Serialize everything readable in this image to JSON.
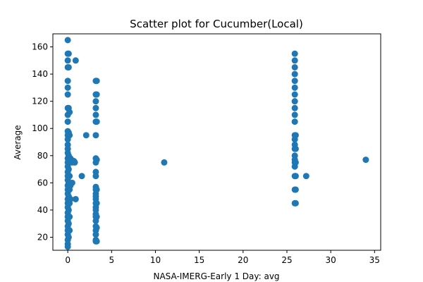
{
  "chart_data": {
    "type": "scatter",
    "title": "Scatter plot for Cucumber(Local)",
    "xlabel": "NASA-IMERG-Early 1 Day: avg",
    "ylabel": "Average",
    "xlim": [
      -1.7,
      35.7
    ],
    "ylim": [
      10.4,
      169.6
    ],
    "xticks": [
      0,
      5,
      10,
      15,
      20,
      25,
      30,
      35
    ],
    "yticks": [
      20,
      40,
      60,
      80,
      100,
      120,
      140,
      160
    ],
    "grid": false,
    "point_color": "#1f77b4",
    "points": [
      [
        0,
        165
      ],
      [
        0,
        155
      ],
      [
        0,
        150
      ],
      [
        0,
        145
      ],
      [
        0,
        135
      ],
      [
        0,
        130
      ],
      [
        0,
        125
      ],
      [
        0,
        115
      ],
      [
        0,
        110
      ],
      [
        0,
        105
      ],
      [
        0,
        98
      ],
      [
        0,
        95
      ],
      [
        0,
        92
      ],
      [
        0,
        88
      ],
      [
        0,
        85
      ],
      [
        0,
        82
      ],
      [
        0,
        78
      ],
      [
        0,
        75
      ],
      [
        0,
        72
      ],
      [
        0,
        68
      ],
      [
        0,
        65
      ],
      [
        0,
        62
      ],
      [
        0,
        58
      ],
      [
        0,
        55
      ],
      [
        0,
        52
      ],
      [
        0,
        48
      ],
      [
        0,
        45
      ],
      [
        0,
        42
      ],
      [
        0,
        38
      ],
      [
        0,
        35
      ],
      [
        0,
        32
      ],
      [
        0,
        28
      ],
      [
        0,
        25
      ],
      [
        0,
        22
      ],
      [
        0,
        18
      ],
      [
        0,
        15
      ],
      [
        0,
        13
      ],
      [
        0.1,
        155
      ],
      [
        0.1,
        145
      ],
      [
        0.1,
        115
      ],
      [
        0.1,
        97
      ],
      [
        0.1,
        80
      ],
      [
        0.1,
        70
      ],
      [
        0.1,
        60
      ],
      [
        0.1,
        50
      ],
      [
        0.1,
        40
      ],
      [
        0.1,
        30
      ],
      [
        0.1,
        20
      ],
      [
        0.2,
        112
      ],
      [
        0.2,
        95
      ],
      [
        0.2,
        78
      ],
      [
        0.2,
        65
      ],
      [
        0.2,
        55
      ],
      [
        0.2,
        45
      ],
      [
        0.2,
        35
      ],
      [
        0.2,
        25
      ],
      [
        0.3,
        78
      ],
      [
        0.3,
        58
      ],
      [
        0.3,
        48
      ],
      [
        0.4,
        77
      ],
      [
        0.5,
        60
      ],
      [
        0.5,
        75
      ],
      [
        0.7,
        76
      ],
      [
        0.8,
        75
      ],
      [
        0.9,
        48
      ],
      [
        0.9,
        150
      ],
      [
        1.6,
        65
      ],
      [
        2.1,
        95
      ],
      [
        3.2,
        135
      ],
      [
        3.2,
        125
      ],
      [
        3.2,
        120
      ],
      [
        3.2,
        115
      ],
      [
        3.2,
        110
      ],
      [
        3.2,
        105
      ],
      [
        3.2,
        95
      ],
      [
        3.2,
        78
      ],
      [
        3.2,
        75
      ],
      [
        3.2,
        68
      ],
      [
        3.2,
        65
      ],
      [
        3.2,
        57
      ],
      [
        3.2,
        55
      ],
      [
        3.2,
        52
      ],
      [
        3.2,
        50
      ],
      [
        3.2,
        48
      ],
      [
        3.2,
        45
      ],
      [
        3.2,
        42
      ],
      [
        3.2,
        40
      ],
      [
        3.2,
        37
      ],
      [
        3.2,
        35
      ],
      [
        3.2,
        32
      ],
      [
        3.2,
        28
      ],
      [
        3.2,
        25
      ],
      [
        3.2,
        22
      ],
      [
        3.2,
        18
      ],
      [
        3.2,
        17
      ],
      [
        3.3,
        135
      ],
      [
        3.3,
        125
      ],
      [
        3.3,
        105
      ],
      [
        3.3,
        77
      ],
      [
        3.3,
        55
      ],
      [
        3.3,
        45
      ],
      [
        3.3,
        35
      ],
      [
        3.3,
        27
      ],
      [
        3.3,
        17
      ],
      [
        11,
        75
      ],
      [
        25.9,
        155
      ],
      [
        25.9,
        150
      ],
      [
        25.9,
        145
      ],
      [
        25.9,
        140
      ],
      [
        25.9,
        135
      ],
      [
        25.9,
        130
      ],
      [
        25.9,
        125
      ],
      [
        25.9,
        120
      ],
      [
        25.9,
        115
      ],
      [
        25.9,
        110
      ],
      [
        25.9,
        105
      ],
      [
        25.9,
        95
      ],
      [
        25.9,
        92
      ],
      [
        25.9,
        88
      ],
      [
        25.9,
        85
      ],
      [
        25.9,
        80
      ],
      [
        25.9,
        77
      ],
      [
        25.9,
        75
      ],
      [
        25.9,
        72
      ],
      [
        25.9,
        65
      ],
      [
        25.9,
        55
      ],
      [
        25.9,
        45
      ],
      [
        26.0,
        95
      ],
      [
        26.0,
        85
      ],
      [
        26.0,
        75
      ],
      [
        26.0,
        65
      ],
      [
        26.0,
        55
      ],
      [
        26.0,
        45
      ],
      [
        27.2,
        65
      ],
      [
        34,
        77
      ]
    ]
  }
}
